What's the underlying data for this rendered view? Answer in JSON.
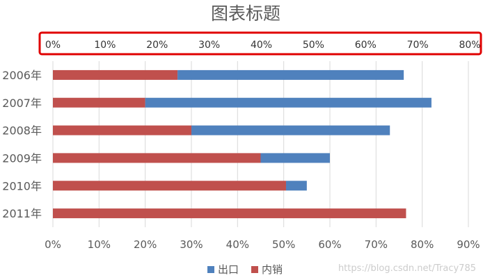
{
  "chart_data": {
    "type": "bar",
    "orientation": "horizontal",
    "stacked": true,
    "title": "图表标题",
    "categories": [
      "2006年",
      "2007年",
      "2008年",
      "2009年",
      "2010年",
      "2011年"
    ],
    "series": [
      {
        "name": "内销",
        "color": "#c0504d",
        "values": [
          27,
          20,
          30,
          45,
          50.5,
          76.5
        ]
      },
      {
        "name": "出口",
        "color": "#4f81bd",
        "values": [
          49,
          62,
          43,
          15,
          4.5,
          0
        ]
      }
    ],
    "x_axis": {
      "ticks": [
        "0%",
        "10%",
        "20%",
        "30%",
        "40%",
        "50%",
        "60%",
        "70%",
        "80%",
        "90%"
      ],
      "range": [
        0,
        90
      ]
    },
    "top_axis": {
      "ticks": [
        "0%",
        "10%",
        "20%",
        "30%",
        "40%",
        "50%",
        "60%",
        "70%",
        "80%"
      ],
      "highlight_color": "#e00000"
    },
    "grid": true,
    "legend_position": "bottom",
    "watermark": "https://blog.csdn.net/Tracy785"
  }
}
